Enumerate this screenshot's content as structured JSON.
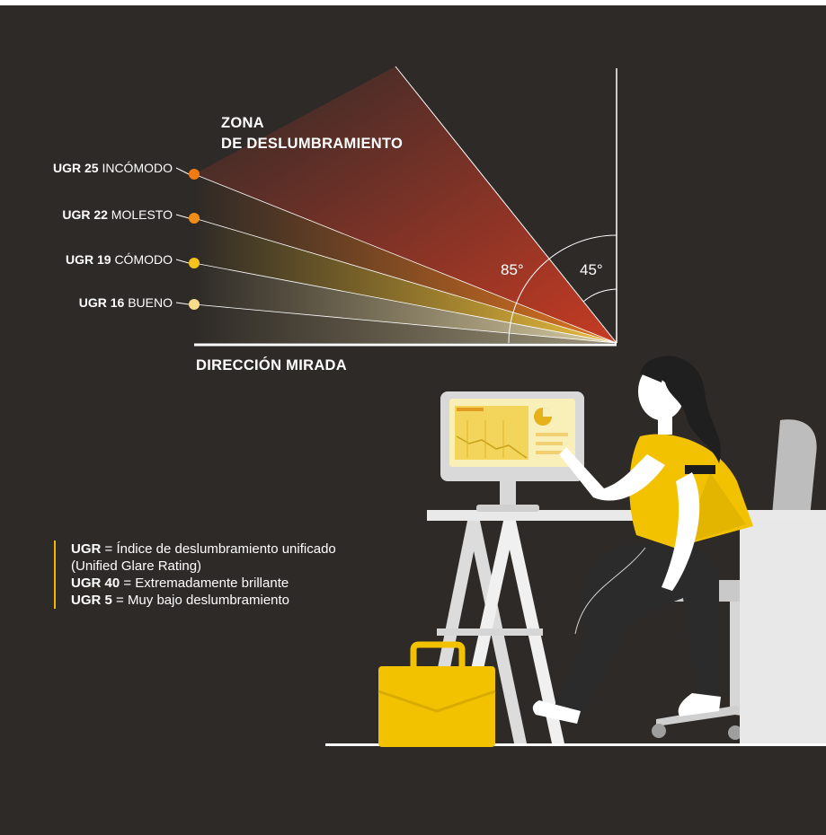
{
  "title": {
    "line1": "ZONA",
    "line2": "DE DESLUMBRAMIENTO"
  },
  "ugr_levels": [
    {
      "code": "UGR 25",
      "label": "INCÓMODO",
      "color": "#f07a14"
    },
    {
      "code": "UGR 22",
      "label": "MOLESTO",
      "color": "#f28d18"
    },
    {
      "code": "UGR 19",
      "label": "CÓMODO",
      "color": "#f5c21d"
    },
    {
      "code": "UGR 16",
      "label": "BUENO",
      "color": "#f6dd8c"
    }
  ],
  "angles": {
    "a85": "85°",
    "a45": "45°"
  },
  "gaze_label": "DIRECCIÓN MIRADA",
  "legend": [
    {
      "key": "UGR",
      "text": " = Índice de deslumbramiento unificado"
    },
    {
      "key": "",
      "text": "(Unified Glare Rating)"
    },
    {
      "key": "UGR 40",
      "text": " = Extremadamente brillante"
    },
    {
      "key": "UGR 5",
      "text": " = Muy bajo deslumbramiento"
    }
  ],
  "colors": {
    "background": "#2e2a27",
    "glare_red": "#c0392b",
    "accent_yellow": "#f2c200"
  }
}
